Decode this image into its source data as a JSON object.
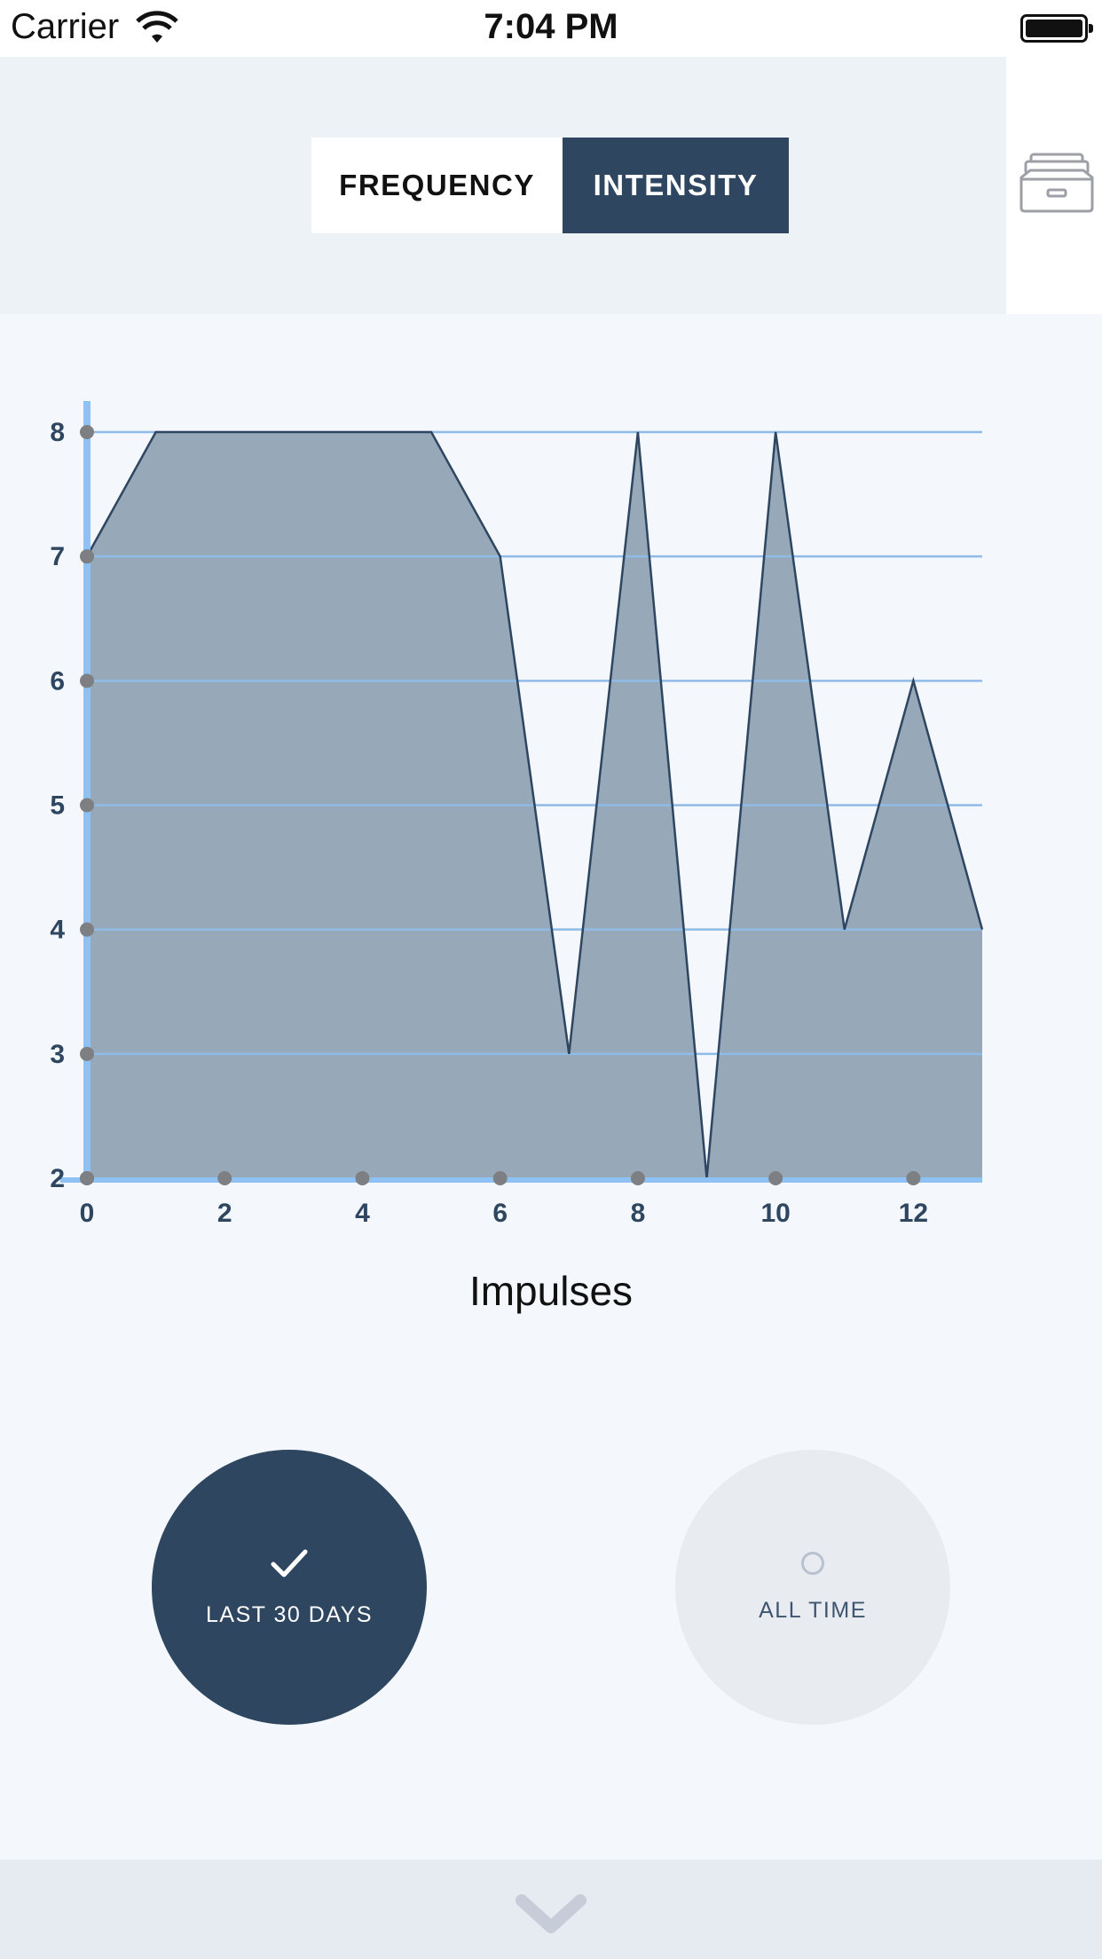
{
  "status_bar": {
    "carrier": "Carrier",
    "time": "7:04 PM"
  },
  "toolbar": {
    "tabs": [
      {
        "label": "FREQUENCY",
        "selected": false
      },
      {
        "label": "INTENSITY",
        "selected": true
      }
    ],
    "archive_icon": "archive-tray-icon"
  },
  "chart_data": {
    "type": "area",
    "xlabel": "Impulses",
    "ylabel": "",
    "x": [
      0,
      1,
      2,
      3,
      4,
      5,
      6,
      7,
      8,
      9,
      10,
      11,
      12,
      13
    ],
    "values": [
      7,
      8,
      8,
      8,
      8,
      8,
      7,
      3,
      8,
      2,
      8,
      4,
      6,
      4
    ],
    "xlim": [
      0,
      13
    ],
    "ylim": [
      2,
      8
    ],
    "x_ticks": [
      0,
      2,
      4,
      6,
      8,
      10,
      12
    ],
    "y_ticks": [
      2,
      3,
      4,
      5,
      6,
      7,
      8
    ],
    "grid": true,
    "colors": {
      "fill": "#97a8b8",
      "line": "#2e4660",
      "grid": "#8fbbe8",
      "axis": "#8ec2f5",
      "dots": "#7d7f82"
    }
  },
  "range_buttons": [
    {
      "label": "LAST 30 DAYS",
      "selected": true,
      "icon": "checkmark-icon"
    },
    {
      "label": "ALL TIME",
      "selected": false,
      "icon": "radio-circle-icon"
    }
  ],
  "bottom_bar": {
    "icon": "chevron-down-icon"
  },
  "colors": {
    "primary": "#2e4660",
    "header_bg": "#edf2f7",
    "page_bg": "#f4f8fc",
    "inactive_circle": "#e8ecf1",
    "bottom_bar": "#e6ebf1"
  }
}
